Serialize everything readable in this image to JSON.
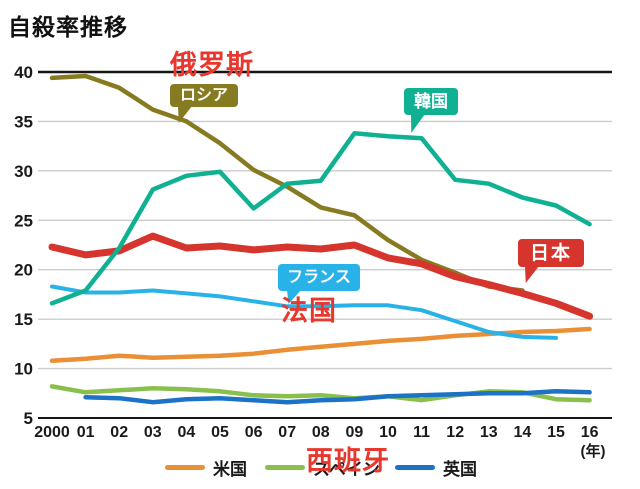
{
  "title": "自殺率推移",
  "chart_data": {
    "type": "line",
    "title": "自殺率推移",
    "x_labels": [
      "2000",
      "01",
      "02",
      "03",
      "04",
      "05",
      "06",
      "07",
      "08",
      "09",
      "10",
      "11",
      "12",
      "13",
      "14",
      "15",
      "16"
    ],
    "x_unit": "(年)",
    "y_ticks": [
      40,
      35,
      30,
      25,
      20,
      15,
      10,
      5
    ],
    "ylim": [
      5,
      40
    ],
    "grid": "horizontal",
    "series": [
      {
        "name": "usa",
        "label": "米国",
        "color": "#ea8f35",
        "width": 4.5,
        "values": [
          10.8,
          11.0,
          11.3,
          11.1,
          11.2,
          11.3,
          11.5,
          11.9,
          12.2,
          12.5,
          12.8,
          13.0,
          13.3,
          13.5,
          13.7,
          13.8,
          14.0
        ]
      },
      {
        "name": "spain",
        "label": "スペイン",
        "color": "#89c04d",
        "width": 4.5,
        "values": [
          8.2,
          7.6,
          7.8,
          8.0,
          7.9,
          7.7,
          7.3,
          7.2,
          7.3,
          7.0,
          7.2,
          6.8,
          7.3,
          7.7,
          7.6,
          6.9,
          6.8
        ]
      },
      {
        "name": "uk",
        "label": "英国",
        "color": "#1c72c6",
        "width": 4.5,
        "values": [
          null,
          7.1,
          7.0,
          6.6,
          6.9,
          7.0,
          6.8,
          6.6,
          6.8,
          6.9,
          7.2,
          7.3,
          7.4,
          7.5,
          7.5,
          7.7,
          7.6
        ]
      },
      {
        "name": "france",
        "label": "フランス",
        "color": "#29b2e8",
        "width": 4,
        "values": [
          18.3,
          17.7,
          17.7,
          17.9,
          17.6,
          17.3,
          16.8,
          16.3,
          16.3,
          16.4,
          16.4,
          15.9,
          14.8,
          13.7,
          13.2,
          13.1,
          null
        ]
      },
      {
        "name": "russia",
        "label": "ロシア",
        "color": "#877b21",
        "width": 4.5,
        "values": [
          39.4,
          39.6,
          38.4,
          36.2,
          35.0,
          32.8,
          30.1,
          28.4,
          26.3,
          25.5,
          23.0,
          21.0,
          19.7,
          18.3,
          17.9,
          null,
          null
        ]
      },
      {
        "name": "japan",
        "label": "日本",
        "color": "#d5352c",
        "width": 7,
        "values": [
          22.3,
          21.5,
          21.9,
          23.4,
          22.2,
          22.4,
          22.0,
          22.3,
          22.1,
          22.5,
          21.2,
          20.6,
          19.3,
          18.5,
          17.6,
          16.6,
          15.3
        ]
      },
      {
        "name": "korea",
        "label": "韓国",
        "color": "#10b093",
        "width": 4.5,
        "values": [
          16.6,
          17.9,
          22.2,
          28.1,
          29.5,
          29.9,
          26.2,
          28.7,
          29.0,
          33.8,
          33.5,
          33.3,
          29.1,
          28.7,
          27.3,
          26.5,
          24.6
        ]
      }
    ]
  },
  "annotations": {
    "russia_box": {
      "label": "ロシア",
      "color": "#877b21"
    },
    "korea_box": {
      "label": "韓国",
      "color": "#10b093"
    },
    "france_box": {
      "label": "フランス",
      "color": "#29b2e8"
    },
    "japan_box": {
      "label": "日本",
      "color": "#d5352c"
    },
    "cn_russia": "俄罗斯",
    "cn_france": "法国",
    "cn_spain": "西班牙",
    "cn_color": "#e8382e"
  },
  "legend": [
    {
      "label": "米国",
      "color": "#ea8f35"
    },
    {
      "label": "スペイン",
      "color": "#89c04d"
    },
    {
      "label": "英国",
      "color": "#1c72c6"
    }
  ]
}
